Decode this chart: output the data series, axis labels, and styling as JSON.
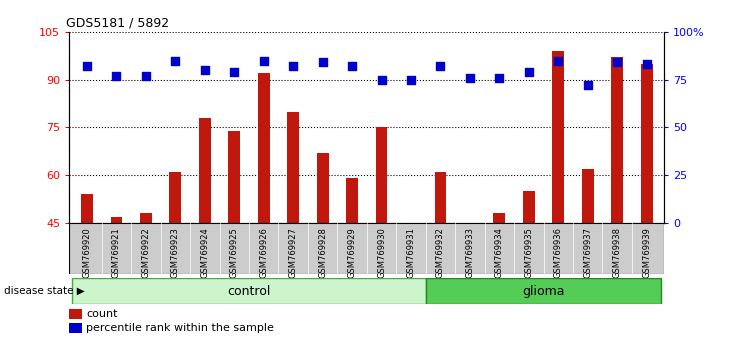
{
  "title": "GDS5181 / 5892",
  "samples": [
    "GSM769920",
    "GSM769921",
    "GSM769922",
    "GSM769923",
    "GSM769924",
    "GSM769925",
    "GSM769926",
    "GSM769927",
    "GSM769928",
    "GSM769929",
    "GSM769930",
    "GSM769931",
    "GSM769932",
    "GSM769933",
    "GSM769934",
    "GSM769935",
    "GSM769936",
    "GSM769937",
    "GSM769938",
    "GSM769939"
  ],
  "bar_values": [
    54,
    47,
    48,
    61,
    78,
    74,
    92,
    80,
    67,
    59,
    75,
    45,
    61,
    45,
    48,
    55,
    99,
    62,
    97,
    95
  ],
  "percentile_values": [
    82,
    77,
    77,
    85,
    80,
    79,
    85,
    82,
    84,
    82,
    75,
    75,
    82,
    76,
    76,
    79,
    85,
    72,
    84,
    83
  ],
  "ylim_left": [
    45,
    105
  ],
  "yticks_left": [
    45,
    60,
    75,
    90,
    105
  ],
  "ylim_right": [
    0,
    100
  ],
  "yticks_right": [
    0,
    25,
    50,
    75,
    100
  ],
  "bar_color": "#c0180c",
  "dot_color": "#0000cc",
  "control_count": 12,
  "glioma_count": 8,
  "control_color": "#ccf5cc",
  "glioma_color": "#55cc55",
  "control_label": "control",
  "glioma_label": "glioma",
  "disease_state_label": "disease state",
  "legend_bar_label": "count",
  "legend_dot_label": "percentile rank within the sample",
  "tick_area_color": "#cccccc",
  "bar_width": 0.4
}
